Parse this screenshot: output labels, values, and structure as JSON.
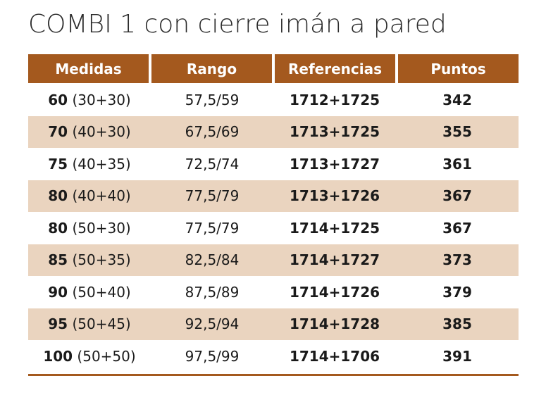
{
  "title": "COMBI 1 con cierre imán a pared",
  "colors": {
    "header_bg": "#a4591e",
    "header_text": "#ffffff",
    "stripe": "#ead4bf",
    "rule": "#a4591e"
  },
  "table": {
    "headers": [
      "Medidas",
      "Rango",
      "Referencias",
      "Puntos"
    ],
    "rows": [
      {
        "size": "60",
        "split": "(30+30)",
        "range": "57,5/59",
        "refs": "1712+1725",
        "points": "342"
      },
      {
        "size": "70",
        "split": "(40+30)",
        "range": "67,5/69",
        "refs": "1713+1725",
        "points": "355"
      },
      {
        "size": "75",
        "split": "(40+35)",
        "range": "72,5/74",
        "refs": "1713+1727",
        "points": "361"
      },
      {
        "size": "80",
        "split": "(40+40)",
        "range": "77,5/79",
        "refs": "1713+1726",
        "points": "367"
      },
      {
        "size": "80",
        "split": "(50+30)",
        "range": "77,5/79",
        "refs": "1714+1725",
        "points": "367"
      },
      {
        "size": "85",
        "split": "(50+35)",
        "range": "82,5/84",
        "refs": "1714+1727",
        "points": "373"
      },
      {
        "size": "90",
        "split": "(50+40)",
        "range": "87,5/89",
        "refs": "1714+1726",
        "points": "379"
      },
      {
        "size": "95",
        "split": "(50+45)",
        "range": "92,5/94",
        "refs": "1714+1728",
        "points": "385"
      },
      {
        "size": "100",
        "split": "(50+50)",
        "range": "97,5/99",
        "refs": "1714+1706",
        "points": "391"
      }
    ]
  }
}
